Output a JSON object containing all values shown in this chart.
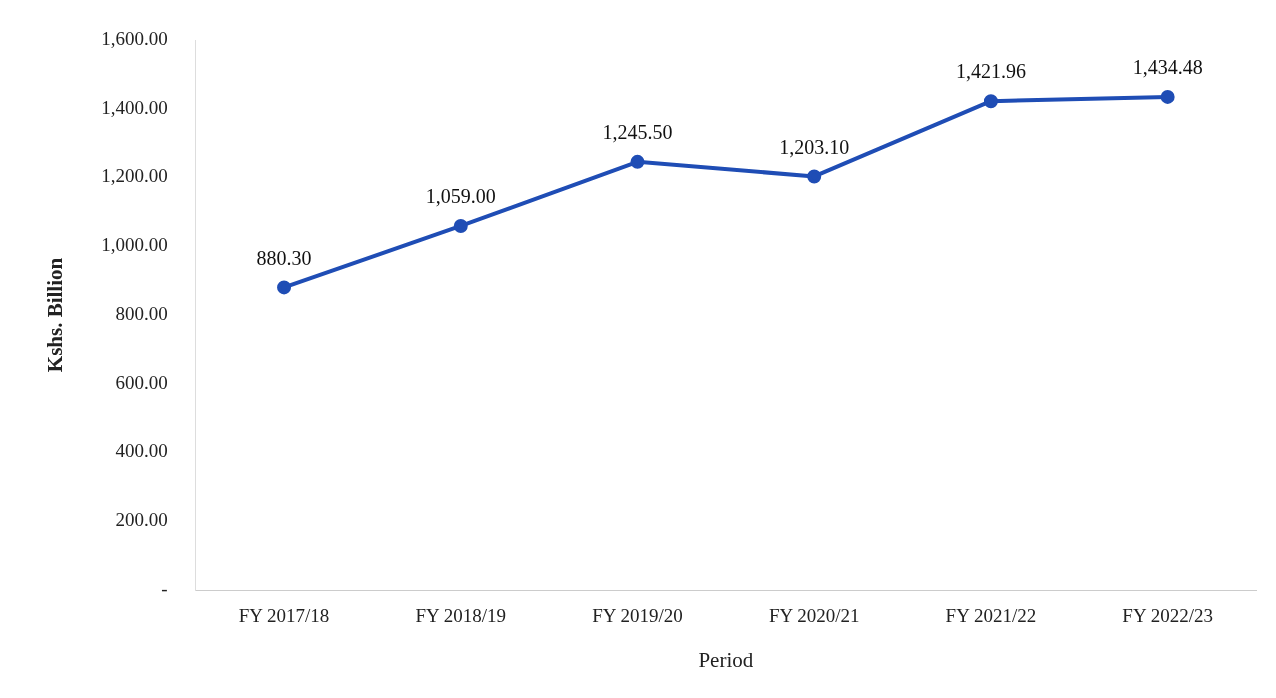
{
  "chart_data": {
    "type": "line",
    "xlabel": "Period",
    "ylabel": "Kshs. Billion",
    "categories": [
      "FY 2017/18",
      "FY 2018/19",
      "FY 2019/20",
      "FY 2020/21",
      "FY 2021/22",
      "FY 2022/23"
    ],
    "series": [
      {
        "color": "#1f4db5",
        "values": [
          880.3,
          1059,
          1245.5,
          1203.1,
          1421.96,
          1434.48
        ],
        "value_labels": [
          "880.30",
          "1,059.00",
          "1,245.50",
          "1,203.10",
          "1,421.96",
          "1,434.48"
        ]
      }
    ],
    "ylim": [
      0,
      1600
    ],
    "yticks": [
      {
        "value": 0,
        "label": "-"
      },
      {
        "value": 200,
        "label": "200.00"
      },
      {
        "value": 400,
        "label": "400.00"
      },
      {
        "value": 600,
        "label": "600.00"
      },
      {
        "value": 800,
        "label": "800.00"
      },
      {
        "value": 1000,
        "label": "1,000.00"
      },
      {
        "value": 1200,
        "label": "1,200.00"
      },
      {
        "value": 1400,
        "label": "1,400.00"
      },
      {
        "value": 1600,
        "label": "1,600.00"
      }
    ],
    "grid": false,
    "legend": false,
    "marker": "circle",
    "line_style": "solid"
  }
}
